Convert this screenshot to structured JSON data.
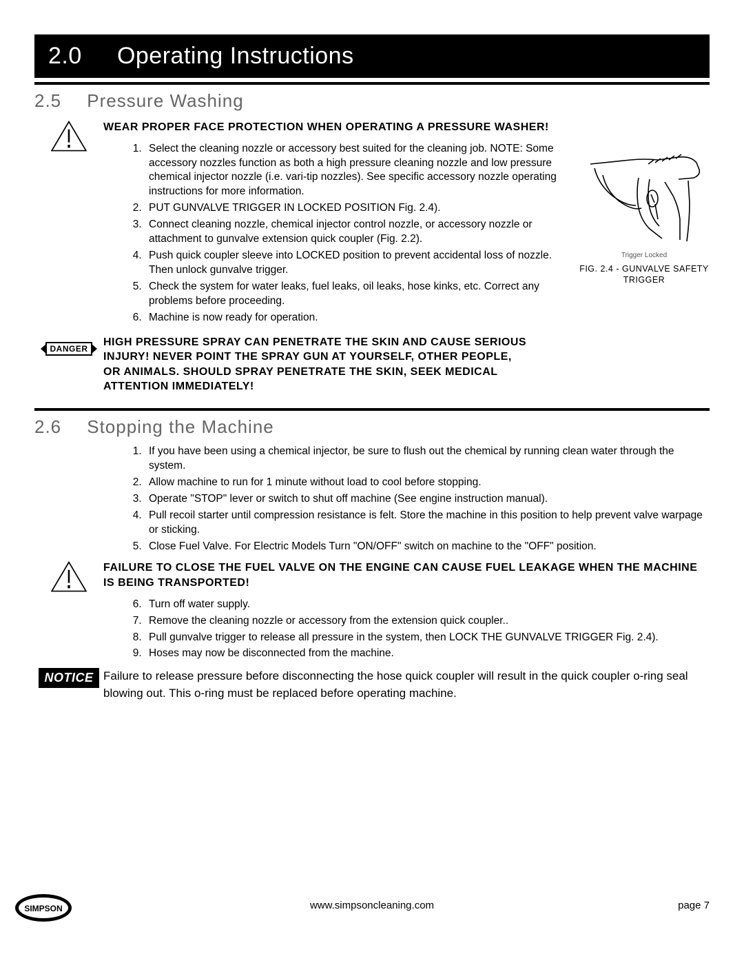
{
  "chapter": {
    "number": "2.0",
    "title": "Operating Instructions"
  },
  "section25": {
    "number": "2.5",
    "title": "Pressure Washing",
    "warn1": "WEAR PROPER FACE PROTECTION WHEN OPERATING A PRESSURE WASHER!",
    "steps": [
      "Select the cleaning nozzle or accessory best suited for the cleaning job.\nNOTE: Some accessory nozzles function as both a high pressure cleaning nozzle and low pressure chemical injector nozzle (i.e. vari-tip nozzles). See specific accessory nozzle operating instructions for more information.",
      "PUT GUNVALVE TRIGGER IN LOCKED POSITION  Fig. 2.4).",
      "Connect cleaning nozzle, chemical injector control nozzle, or accessory nozzle or attachment to gunvalve extension quick coupler (Fig. 2.2).",
      "Push quick coupler sleeve into LOCKED position to prevent accidental loss of nozzle. Then unlock gunvalve trigger.",
      "Check the system for water leaks, fuel leaks, oil leaks, hose kinks, etc. Correct any problems before proceeding.",
      "Machine is now ready for operation."
    ],
    "danger": "HIGH PRESSURE SPRAY CAN PENETRATE THE SKIN AND CAUSE SERIOUS INJURY!  NEVER POINT THE SPRAY GUN AT YOURSELF, OTHER PEOPLE, OR ANIMALS.  SHOULD SPRAY PENETRATE THE SKIN, SEEK MEDICAL ATTENTION IMMEDIATELY!",
    "figure": {
      "inline_label": "Trigger Locked",
      "caption": "FIG. 2.4 - GUNVALVE SAFETY TRIGGER"
    }
  },
  "section26": {
    "number": "2.6",
    "title": "Stopping the Machine",
    "steps_a": [
      "If you have been using a chemical injector, be sure to flush out the chemical by running clean water through the system.",
      "Allow machine to run for 1 minute without load to cool before stopping.",
      "Operate \"STOP\" lever or switch to shut off machine (See engine instruction manual).",
      "Pull recoil starter until compression resistance is felt. Store the machine in this position to help prevent valve warpage or sticking.",
      "Close Fuel Valve. For Electric Models Turn \"ON/OFF\" switch on machine to the \"OFF\" position."
    ],
    "warn_mid": "FAILURE TO CLOSE THE FUEL VALVE ON THE ENGINE CAN CAUSE FUEL LEAKAGE WHEN THE MACHINE IS BEING TRANSPORTED!",
    "steps_b_start": 6,
    "steps_b": [
      "Turn off water supply.",
      "Remove the cleaning nozzle or accessory from the extension quick coupler..",
      "Pull gunvalve trigger to release all pressure in the system, then LOCK THE GUNVALVE TRIGGER  Fig. 2.4).",
      "Hoses may now be disconnected from the machine."
    ],
    "notice": "Failure to release pressure before disconnecting the hose quick coupler will result in the quick coupler o-ring seal blowing out. This o-ring must be replaced before operating machine."
  },
  "labels": {
    "danger": "DANGER",
    "notice": "NOTICE"
  },
  "footer": {
    "logo_text": "SIMPSON",
    "url": "www.simpsoncleaning.com",
    "page": "page 7"
  }
}
